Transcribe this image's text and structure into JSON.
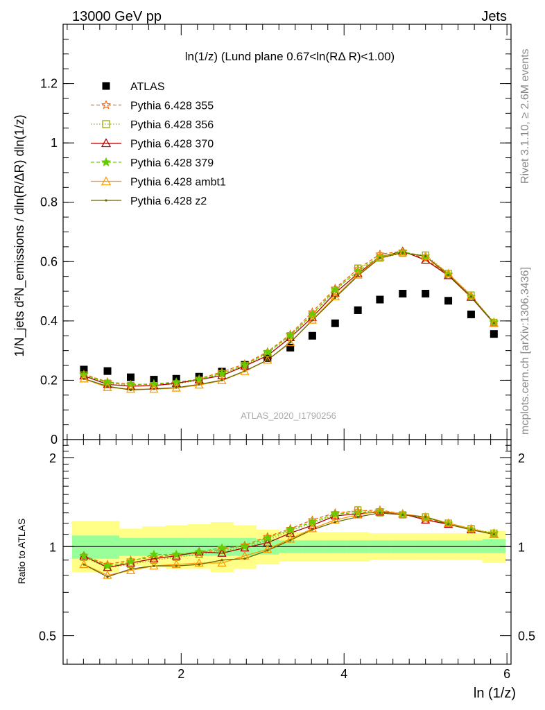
{
  "header": {
    "left": "13000 GeV pp",
    "right": "Jets"
  },
  "plot_title": "ln(1/z) (Lund plane 0.67<ln(RΔ R)<1.00)",
  "analysis_label": "ATLAS_2020_I1790256",
  "side_labels": {
    "rivet": "Rivet 3.1.10, ≥ 2.6M events",
    "mcplots": "mcplots.cern.ch [arXiv:1306.3436]"
  },
  "colors": {
    "data": "#000000",
    "band_inner": "#99ff99",
    "band_outer": "#ffff88",
    "s355": "#ff6600",
    "s356": "#99aa00",
    "s370": "#aa0000",
    "s379": "#66cc00",
    "ambt1": "#ff9900",
    "z2": "#666600"
  },
  "chart_data": [
    {
      "type": "scatter",
      "panel": "main",
      "ylabel": "1/N_jets d²N_emissions / dln(R/ΔR) dln(1/z)",
      "ylim": [
        0,
        1.4
      ],
      "xlim": [
        0.55,
        6.05
      ],
      "y_ticks": [
        "0",
        "0.2",
        "0.4",
        "0.6",
        "0.8",
        "1",
        "1.2"
      ],
      "legend_position": "top-left",
      "x": [
        0.805,
        1.095,
        1.38,
        1.665,
        1.94,
        2.22,
        2.5,
        2.78,
        3.06,
        3.34,
        3.61,
        3.89,
        4.17,
        4.44,
        4.72,
        5.0,
        5.28,
        5.56,
        5.84
      ],
      "series": [
        {
          "name": "ATLAS",
          "key": "atlas",
          "marker": "square-filled",
          "line": "none",
          "values": [
            0.236,
            0.231,
            0.21,
            0.202,
            0.205,
            0.212,
            0.229,
            0.252,
            0.275,
            0.31,
            0.35,
            0.392,
            0.436,
            0.472,
            0.492,
            0.492,
            0.468,
            0.422,
            0.356
          ]
        },
        {
          "name": "Pythia 6.428 355",
          "key": "s355",
          "marker": "star-open",
          "line": "dashed",
          "values": [
            0.22,
            0.195,
            0.186,
            0.186,
            0.192,
            0.205,
            0.228,
            0.255,
            0.296,
            0.355,
            0.43,
            0.51,
            0.575,
            0.625,
            0.635,
            0.61,
            0.555,
            0.482,
            0.395
          ]
        },
        {
          "name": "Pythia 6.428 356",
          "key": "s356",
          "marker": "square-open",
          "line": "dotted",
          "values": [
            0.218,
            0.19,
            0.182,
            0.182,
            0.188,
            0.2,
            0.222,
            0.25,
            0.29,
            0.35,
            0.42,
            0.5,
            0.578,
            0.612,
            0.628,
            0.622,
            0.56,
            0.487,
            0.395
          ]
        },
        {
          "name": "Pythia 6.428 370",
          "key": "s370",
          "marker": "triangle-open",
          "line": "solid",
          "values": [
            0.215,
            0.186,
            0.18,
            0.182,
            0.19,
            0.202,
            0.216,
            0.248,
            0.283,
            0.344,
            0.412,
            0.494,
            0.56,
            0.615,
            0.635,
            0.605,
            0.553,
            0.48,
            0.392
          ]
        },
        {
          "name": "Pythia 6.428 379",
          "key": "s379",
          "marker": "star-filled",
          "line": "dashed",
          "values": [
            0.218,
            0.192,
            0.185,
            0.188,
            0.194,
            0.203,
            0.223,
            0.251,
            0.294,
            0.352,
            0.422,
            0.506,
            0.567,
            0.618,
            0.633,
            0.618,
            0.557,
            0.482,
            0.396
          ]
        },
        {
          "name": "Pythia 6.428 ambt1",
          "key": "ambt1",
          "marker": "triangle-open",
          "line": "solid",
          "values": [
            0.205,
            0.176,
            0.17,
            0.17,
            0.174,
            0.184,
            0.199,
            0.23,
            0.268,
            0.327,
            0.403,
            0.482,
            0.555,
            0.615,
            0.63,
            0.618,
            0.56,
            0.485,
            0.392
          ]
        },
        {
          "name": "Pythia 6.428 z2",
          "key": "z2",
          "marker": "dot",
          "line": "solid",
          "values": [
            0.205,
            0.18,
            0.167,
            0.171,
            0.175,
            0.186,
            0.2,
            0.231,
            0.268,
            0.328,
            0.402,
            0.478,
            0.552,
            0.612,
            0.63,
            0.618,
            0.555,
            0.482,
            0.393
          ]
        }
      ]
    },
    {
      "type": "line",
      "panel": "ratio",
      "ylabel": "Ratio to ATLAS",
      "xlabel": "ln (1/z)",
      "xlim": [
        0.55,
        6.05
      ],
      "ylim": [
        0.4,
        2.3
      ],
      "log_y": true,
      "y_ticks": [
        "0.5",
        "1",
        "2"
      ],
      "x_ticks": [
        "2",
        "4",
        "6"
      ],
      "bins": [
        0.66,
        0.95,
        1.24,
        1.52,
        1.81,
        2.08,
        2.36,
        2.64,
        2.92,
        3.2,
        3.48,
        3.75,
        4.03,
        4.31,
        4.58,
        4.86,
        5.14,
        5.42,
        5.7,
        5.98
      ],
      "band_inner": {
        "lower": [
          0.91,
          0.91,
          0.93,
          0.93,
          0.93,
          0.93,
          0.93,
          0.93,
          0.94,
          0.95,
          0.95,
          0.95,
          0.95,
          0.95,
          0.95,
          0.95,
          0.95,
          0.95,
          0.95
        ],
        "upper": [
          1.09,
          1.09,
          1.07,
          1.07,
          1.07,
          1.07,
          1.07,
          1.07,
          1.06,
          1.05,
          1.05,
          1.05,
          1.05,
          1.05,
          1.05,
          1.05,
          1.05,
          1.05,
          1.06
        ]
      },
      "band_outer": {
        "lower": [
          0.82,
          0.82,
          0.86,
          0.85,
          0.84,
          0.84,
          0.82,
          0.84,
          0.87,
          0.89,
          0.89,
          0.89,
          0.89,
          0.9,
          0.9,
          0.9,
          0.9,
          0.9,
          0.88
        ]
      },
      "band_outer_upper": [
        1.22,
        1.22,
        1.15,
        1.17,
        1.18,
        1.19,
        1.21,
        1.18,
        1.14,
        1.12,
        1.12,
        1.12,
        1.12,
        1.11,
        1.11,
        1.11,
        1.11,
        1.11,
        1.13
      ],
      "x": [
        0.805,
        1.095,
        1.38,
        1.665,
        1.94,
        2.22,
        2.5,
        2.78,
        3.06,
        3.34,
        3.61,
        3.89,
        4.17,
        4.44,
        4.72,
        5.0,
        5.28,
        5.56,
        5.84
      ],
      "series": [
        {
          "name": "Pythia 6.428 355",
          "key": "s355",
          "values": [
            0.93,
            0.87,
            0.9,
            0.92,
            0.94,
            0.95,
            0.98,
            1.01,
            1.08,
            1.15,
            1.23,
            1.3,
            1.32,
            1.33,
            1.29,
            1.24,
            1.19,
            1.14,
            1.11
          ]
        },
        {
          "name": "Pythia 6.428 356",
          "key": "s356",
          "values": [
            0.92,
            0.85,
            0.87,
            0.9,
            0.92,
            0.94,
            0.97,
            0.99,
            1.05,
            1.13,
            1.2,
            1.28,
            1.33,
            1.3,
            1.28,
            1.26,
            1.2,
            1.15,
            1.11
          ]
        },
        {
          "name": "Pythia 6.428 370",
          "key": "s370",
          "values": [
            0.93,
            0.85,
            0.88,
            0.91,
            0.93,
            0.96,
            0.95,
            0.99,
            1.03,
            1.11,
            1.18,
            1.27,
            1.29,
            1.31,
            1.29,
            1.23,
            1.19,
            1.14,
            1.1
          ]
        },
        {
          "name": "Pythia 6.428 379",
          "key": "s379",
          "values": [
            0.93,
            0.86,
            0.89,
            0.94,
            0.94,
            0.96,
            0.99,
            1.0,
            1.07,
            1.14,
            1.21,
            1.29,
            1.3,
            1.32,
            1.29,
            1.25,
            1.2,
            1.14,
            1.11
          ]
        },
        {
          "name": "Pythia 6.428 ambt1",
          "key": "ambt1",
          "values": [
            0.87,
            0.8,
            0.83,
            0.86,
            0.87,
            0.88,
            0.88,
            0.93,
            0.98,
            1.06,
            1.15,
            1.23,
            1.28,
            1.32,
            1.29,
            1.26,
            1.2,
            1.15,
            1.1
          ]
        },
        {
          "name": "Pythia 6.428 z2",
          "key": "z2",
          "values": [
            0.87,
            0.79,
            0.84,
            0.86,
            0.86,
            0.87,
            0.9,
            0.91,
            0.97,
            1.05,
            1.14,
            1.21,
            1.26,
            1.3,
            1.28,
            1.26,
            1.19,
            1.14,
            1.1
          ]
        }
      ]
    }
  ]
}
